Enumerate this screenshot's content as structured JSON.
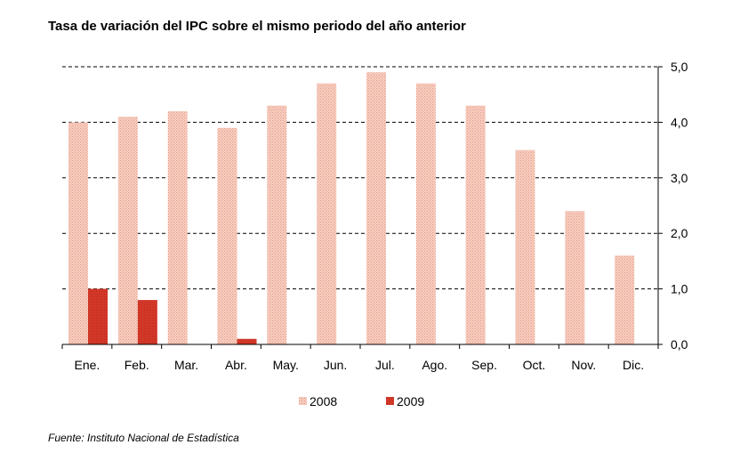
{
  "chart_data": {
    "type": "bar",
    "title": "Tasa de variación del IPC sobre el mismo periodo del año anterior",
    "categories": [
      "Ene.",
      "Feb.",
      "Mar.",
      "Abr.",
      "May.",
      "Jun.",
      "Jul.",
      "Ago.",
      "Sep.",
      "Oct.",
      "Nov.",
      "Dic."
    ],
    "series": [
      {
        "name": "2008",
        "values": [
          4.0,
          4.1,
          4.2,
          3.9,
          4.3,
          4.7,
          4.9,
          4.7,
          4.3,
          3.5,
          2.4,
          1.6
        ],
        "color": "#f2b8a8"
      },
      {
        "name": "2009",
        "values": [
          1.0,
          0.8,
          0.0,
          0.1,
          null,
          null,
          null,
          null,
          null,
          null,
          null,
          null
        ],
        "color": "#d83a2a"
      }
    ],
    "ylim": [
      0,
      5
    ],
    "yticks": [
      "0,0",
      "1,0",
      "2,0",
      "3,0",
      "4,0",
      "5,0"
    ],
    "y_axis_side": "right",
    "grid": "dashed horizontal",
    "legend_position": "bottom-center"
  },
  "source": "Fuente: Instituto Nacional de Estadística"
}
